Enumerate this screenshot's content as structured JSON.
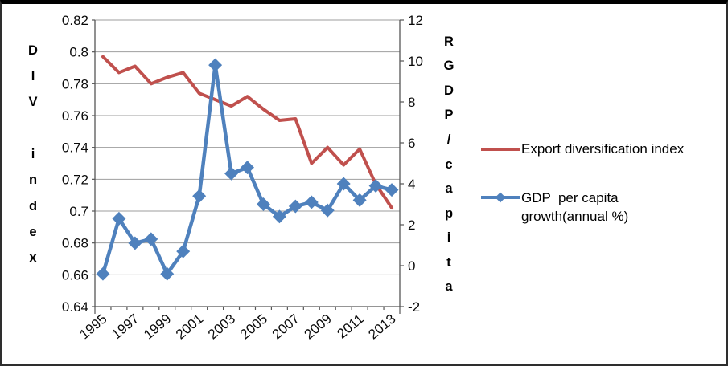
{
  "chart_data": {
    "type": "line",
    "title": "",
    "categories": [
      "1995",
      "1996",
      "1997",
      "1998",
      "1999",
      "2000",
      "2001",
      "2002",
      "2003",
      "2004",
      "2005",
      "2006",
      "2007",
      "2008",
      "2009",
      "2010",
      "2011",
      "2012",
      "2013"
    ],
    "x_axis": {
      "tick_labels": [
        "1995",
        "1997",
        "1999",
        "2001",
        "2003",
        "2005",
        "2007",
        "2009",
        "2011",
        "2013"
      ],
      "label_rotation_deg": -40
    },
    "left_axis": {
      "title": "DIV index",
      "min": 0.64,
      "max": 0.82,
      "step": 0.02,
      "tick_labels": [
        "0.82",
        "0.8",
        "0.78",
        "0.76",
        "0.74",
        "0.72",
        "0.7",
        "0.68",
        "0.66",
        "0.64"
      ]
    },
    "right_axis": {
      "title": "RGDP/capita",
      "min": -2,
      "max": 12,
      "step": 2,
      "tick_labels": [
        "12",
        "10",
        "8",
        "6",
        "4",
        "2",
        "0",
        "-2"
      ]
    },
    "grid": true,
    "legend_position": "right",
    "series": [
      {
        "name": "Export diversification index",
        "axis": "left",
        "color": "#C0504D",
        "marker": "none",
        "values": [
          0.797,
          0.787,
          0.791,
          0.78,
          0.784,
          0.787,
          0.774,
          0.77,
          0.766,
          0.772,
          0.764,
          0.757,
          0.758,
          0.73,
          0.74,
          0.729,
          0.739,
          0.717,
          0.702
        ]
      },
      {
        "name": "GDP per capita growth(annual %)",
        "axis": "right",
        "color": "#4F81BD",
        "marker": "diamond",
        "values": [
          -0.4,
          2.3,
          1.1,
          1.3,
          -0.4,
          0.7,
          3.4,
          9.8,
          4.5,
          4.8,
          3.0,
          2.4,
          2.9,
          3.1,
          2.7,
          4.0,
          3.2,
          3.9,
          3.7
        ]
      }
    ],
    "legend": {
      "items": [
        {
          "series": 0,
          "label_lines": [
            "Export diversification index"
          ]
        },
        {
          "series": 1,
          "label_lines": [
            "GDP  per capita",
            "growth(annual %)"
          ]
        }
      ]
    }
  }
}
